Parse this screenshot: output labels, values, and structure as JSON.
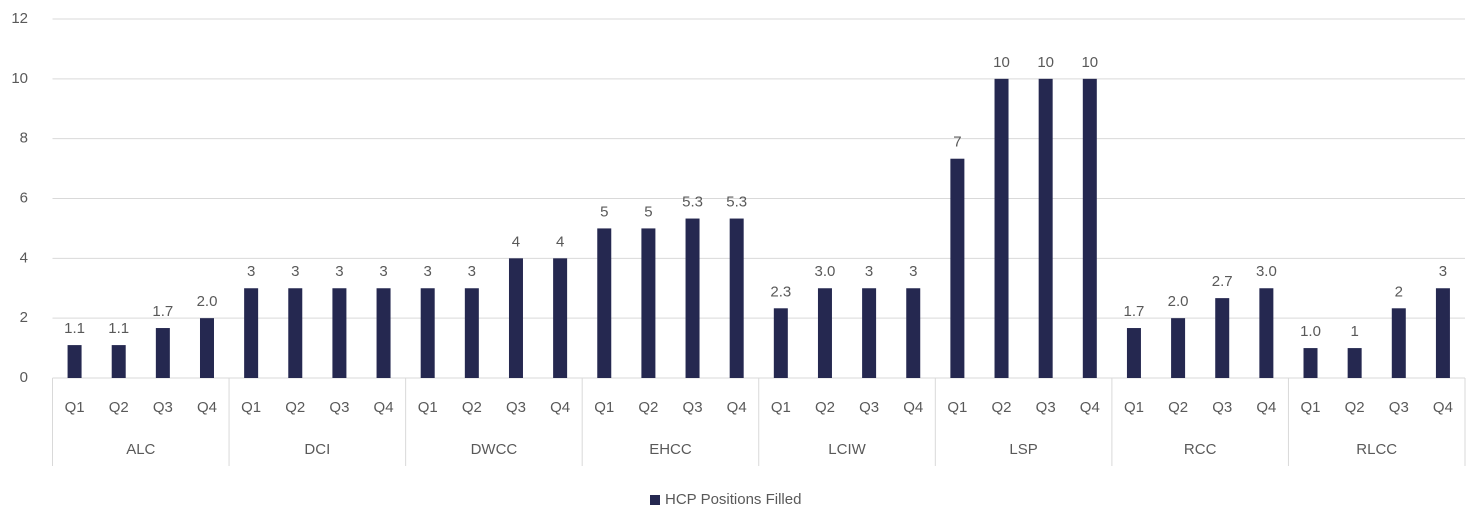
{
  "chart_data": {
    "type": "bar",
    "categories": [
      "Q1",
      "Q2",
      "Q3",
      "Q4",
      "Q1",
      "Q2",
      "Q3",
      "Q4",
      "Q1",
      "Q2",
      "Q3",
      "Q4",
      "Q1",
      "Q2",
      "Q3",
      "Q4",
      "Q1",
      "Q2",
      "Q3",
      "Q4",
      "Q1",
      "Q2",
      "Q3",
      "Q4",
      "Q1",
      "Q2",
      "Q3",
      "Q4",
      "Q1",
      "Q2",
      "Q3",
      "Q4"
    ],
    "groups": [
      "ALC",
      "DCI",
      "DWCC",
      "EHCC",
      "LCIW",
      "LSP",
      "RCC",
      "RLCC"
    ],
    "series": [
      {
        "name": "HCP Positions Filled",
        "color": "#252850",
        "values": [
          1.1,
          1.1,
          1.67,
          2.0,
          3,
          3,
          3,
          3,
          3,
          3,
          4,
          4,
          5,
          5,
          5.33,
          5.33,
          2.33,
          3,
          3,
          3,
          7.33,
          10,
          10,
          10,
          1.67,
          2.0,
          2.67,
          3.0,
          1.0,
          1,
          2.33,
          3
        ],
        "value_labels": [
          "1.1",
          "1.1",
          "1.7",
          "2.0",
          "3",
          "3",
          "3",
          "3",
          "3",
          "3",
          "4",
          "4",
          "5",
          "5",
          "5.3",
          "5.3",
          "2.3",
          "3.0",
          "3",
          "3",
          "7",
          "10",
          "10",
          "10",
          "1.7",
          "2.0",
          "2.7",
          "3.0",
          "1.0",
          "1",
          "2",
          "3"
        ]
      }
    ],
    "ylim": [
      0,
      12
    ],
    "yticks": [
      0,
      2,
      4,
      6,
      8,
      10,
      12
    ],
    "grid": true,
    "legend": "bottom"
  }
}
